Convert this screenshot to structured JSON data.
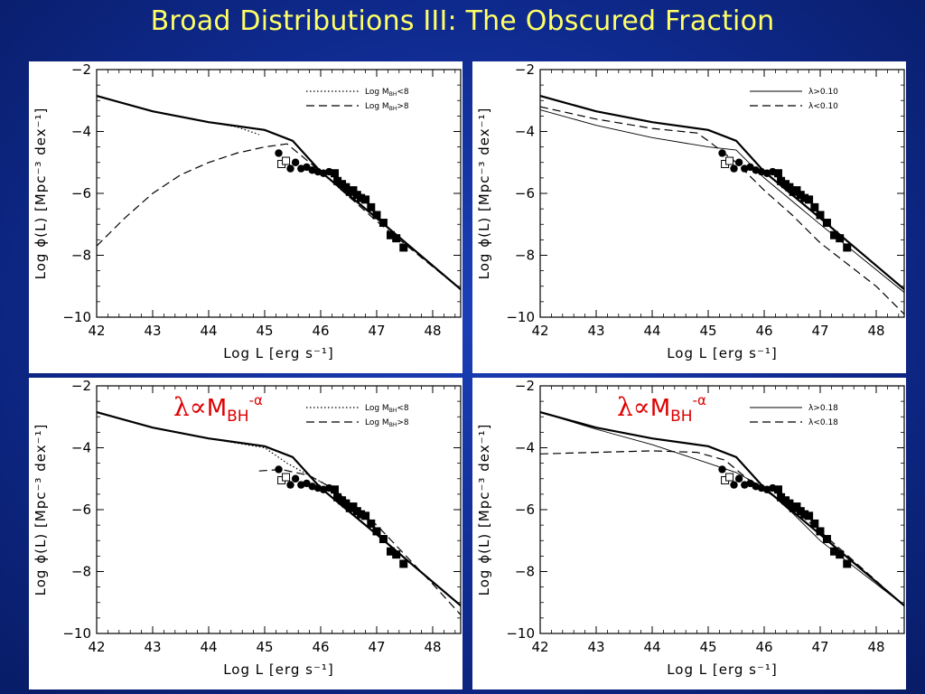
{
  "slide": {
    "title": "Broad Distributions III: The Obscured Fraction"
  },
  "colors": {
    "background": "#0f2a8e",
    "title": "#ffff66",
    "annotation": "#dd0000"
  },
  "chart_data": [
    {
      "type": "line",
      "panel": "top-left",
      "xlabel": "Log L [erg s⁻¹]",
      "ylabel": "Log ϕ(L) [Mpc⁻³ dex⁻¹]",
      "xlim": [
        42,
        48.5
      ],
      "ylim": [
        -10,
        -2
      ],
      "xticks": [
        "42",
        "43",
        "44",
        "45",
        "46",
        "47",
        "48"
      ],
      "yticks": [
        "−2",
        "−4",
        "−6",
        "−8",
        "−10"
      ],
      "annotation": "",
      "legend": [
        {
          "label_main": "Log M",
          "label_sub": "BH",
          "label_tail": "<8",
          "style": "dotted"
        },
        {
          "label_main": "Log M",
          "label_sub": "BH",
          "label_tail": ">8",
          "style": "dashed"
        }
      ],
      "series": [
        {
          "style": "thick-solid",
          "x": [
            42,
            43,
            44,
            45,
            45.5,
            46,
            47,
            48.5
          ],
          "y": [
            -2.85,
            -3.35,
            -3.7,
            -3.95,
            -4.3,
            -5.3,
            -6.8,
            -9.1
          ]
        },
        {
          "style": "dotted",
          "x": [
            42,
            43,
            44,
            44.5,
            44.9
          ],
          "y": [
            -2.85,
            -3.35,
            -3.7,
            -3.85,
            -4.1
          ]
        },
        {
          "style": "dashed",
          "x": [
            42,
            42.5,
            43,
            43.5,
            44,
            44.5,
            45,
            45.4,
            46,
            47,
            48.5
          ],
          "y": [
            -7.7,
            -6.8,
            -6.0,
            -5.4,
            -5.0,
            -4.7,
            -4.5,
            -4.4,
            -5.3,
            -6.9,
            -9.1
          ]
        }
      ]
    },
    {
      "type": "line",
      "panel": "top-right",
      "xlabel": "Log L [erg s⁻¹]",
      "ylabel": "Log ϕ(L) [Mpc⁻³ dex⁻¹]",
      "xlim": [
        42,
        48.5
      ],
      "ylim": [
        -10,
        -2
      ],
      "xticks": [
        "42",
        "43",
        "44",
        "45",
        "46",
        "47",
        "48"
      ],
      "yticks": [
        "−2",
        "−4",
        "−6",
        "−8",
        "−10"
      ],
      "annotation": "",
      "legend": [
        {
          "label_main": "λ>0.10",
          "label_sub": "",
          "label_tail": "",
          "style": "thin-solid"
        },
        {
          "label_main": "λ<0.10",
          "label_sub": "",
          "label_tail": "",
          "style": "dashed"
        }
      ],
      "series": [
        {
          "style": "thick-solid",
          "x": [
            42,
            43,
            44,
            45,
            45.5,
            46,
            47,
            48.5
          ],
          "y": [
            -2.85,
            -3.35,
            -3.7,
            -3.95,
            -4.3,
            -5.3,
            -6.8,
            -9.1
          ]
        },
        {
          "style": "thin-solid",
          "x": [
            42,
            43,
            44,
            45,
            45.5,
            46,
            47,
            48.5
          ],
          "y": [
            -3.3,
            -3.8,
            -4.2,
            -4.5,
            -4.6,
            -5.5,
            -7.0,
            -9.2
          ]
        },
        {
          "style": "dashed",
          "x": [
            42,
            43,
            44,
            44.8,
            45,
            45.5,
            46,
            46.5,
            47,
            48,
            48.5
          ],
          "y": [
            -3.2,
            -3.6,
            -3.9,
            -4.05,
            -4.3,
            -5.0,
            -5.9,
            -6.7,
            -7.6,
            -9.0,
            -9.9
          ]
        }
      ]
    },
    {
      "type": "line",
      "panel": "bottom-left",
      "xlabel": "Log L [erg s⁻¹]",
      "ylabel": "Log ϕ(L) [Mpc⁻³ dex⁻¹]",
      "xlim": [
        42,
        48.5
      ],
      "ylim": [
        -10,
        -2
      ],
      "xticks": [
        "42",
        "43",
        "44",
        "45",
        "46",
        "47",
        "48"
      ],
      "yticks": [
        "−2",
        "−4",
        "−6",
        "−8",
        "−10"
      ],
      "annotation": "λ∝M_BH^-α",
      "legend": [
        {
          "label_main": "Log M",
          "label_sub": "BH",
          "label_tail": "<8",
          "style": "dotted"
        },
        {
          "label_main": "Log M",
          "label_sub": "BH",
          "label_tail": ">8",
          "style": "dashed"
        }
      ],
      "series": [
        {
          "style": "thick-solid",
          "x": [
            42,
            43,
            44,
            45,
            45.5,
            46,
            47,
            48.5
          ],
          "y": [
            -2.85,
            -3.35,
            -3.7,
            -3.95,
            -4.3,
            -5.3,
            -6.8,
            -9.1
          ]
        },
        {
          "style": "dotted",
          "x": [
            42,
            43,
            44,
            45,
            45.4,
            45.8,
            46.2
          ],
          "y": [
            -2.85,
            -3.35,
            -3.7,
            -4.0,
            -4.5,
            -4.9,
            -5.3
          ]
        },
        {
          "style": "dashed",
          "x": [
            44.9,
            45.3,
            45.8,
            46.2,
            47,
            48,
            48.5
          ],
          "y": [
            -4.75,
            -4.7,
            -4.9,
            -5.3,
            -6.5,
            -8.4,
            -9.4
          ]
        }
      ]
    },
    {
      "type": "line",
      "panel": "bottom-right",
      "xlabel": "Log L [erg s⁻¹]",
      "ylabel": "Log ϕ(L) [Mpc⁻³ dex⁻¹]",
      "xlim": [
        42,
        48.5
      ],
      "ylim": [
        -10,
        -2
      ],
      "xticks": [
        "42",
        "43",
        "44",
        "45",
        "46",
        "47",
        "48"
      ],
      "yticks": [
        "−2",
        "−4",
        "−6",
        "−8",
        "−10"
      ],
      "annotation": "λ∝M_BH^-α",
      "legend": [
        {
          "label_main": "λ>0.18",
          "label_sub": "",
          "label_tail": "",
          "style": "thin-solid"
        },
        {
          "label_main": "λ<0.18",
          "label_sub": "",
          "label_tail": "",
          "style": "dashed"
        }
      ],
      "series": [
        {
          "style": "thick-solid",
          "x": [
            42,
            43,
            44,
            45,
            45.5,
            46,
            47,
            48.5
          ],
          "y": [
            -2.85,
            -3.35,
            -3.7,
            -3.95,
            -4.3,
            -5.3,
            -6.8,
            -9.1
          ]
        },
        {
          "style": "thin-solid",
          "x": [
            42,
            43,
            44,
            44.5,
            45,
            45.5,
            46,
            46.5,
            47,
            48.5
          ],
          "y": [
            -2.85,
            -3.4,
            -3.9,
            -4.2,
            -4.5,
            -4.8,
            -5.3,
            -6.1,
            -7.0,
            -9.1
          ]
        },
        {
          "style": "dashed",
          "x": [
            42,
            43,
            44,
            44.8,
            45.3,
            45.7,
            46.2,
            46.6,
            47,
            48.5
          ],
          "y": [
            -4.2,
            -4.15,
            -4.1,
            -4.15,
            -4.4,
            -5.0,
            -5.6,
            -6.1,
            -6.7,
            -9.1
          ]
        }
      ]
    }
  ],
  "observed_points": {
    "circles": {
      "x": [
        45.25,
        45.38,
        45.46,
        45.55,
        45.65,
        45.75,
        45.85,
        45.95,
        46.05,
        46.15
      ],
      "y": [
        -4.7,
        -4.95,
        -5.2,
        -5.0,
        -5.2,
        -5.15,
        -5.25,
        -5.3,
        -5.35,
        -5.3
      ]
    },
    "open_squares": {
      "x": [
        45.3,
        45.38
      ],
      "y": [
        -5.05,
        -4.95
      ]
    },
    "filled_squares": {
      "x": [
        46.25,
        46.3,
        46.38,
        46.45,
        46.52,
        46.58,
        46.65,
        46.72,
        46.8,
        46.9,
        47.0,
        47.12,
        47.25,
        47.35,
        47.48
      ],
      "y": [
        -5.35,
        -5.6,
        -5.7,
        -5.8,
        -5.95,
        -5.9,
        -6.05,
        -6.15,
        -6.2,
        -6.45,
        -6.7,
        -6.95,
        -7.35,
        -7.45,
        -7.75
      ]
    }
  }
}
